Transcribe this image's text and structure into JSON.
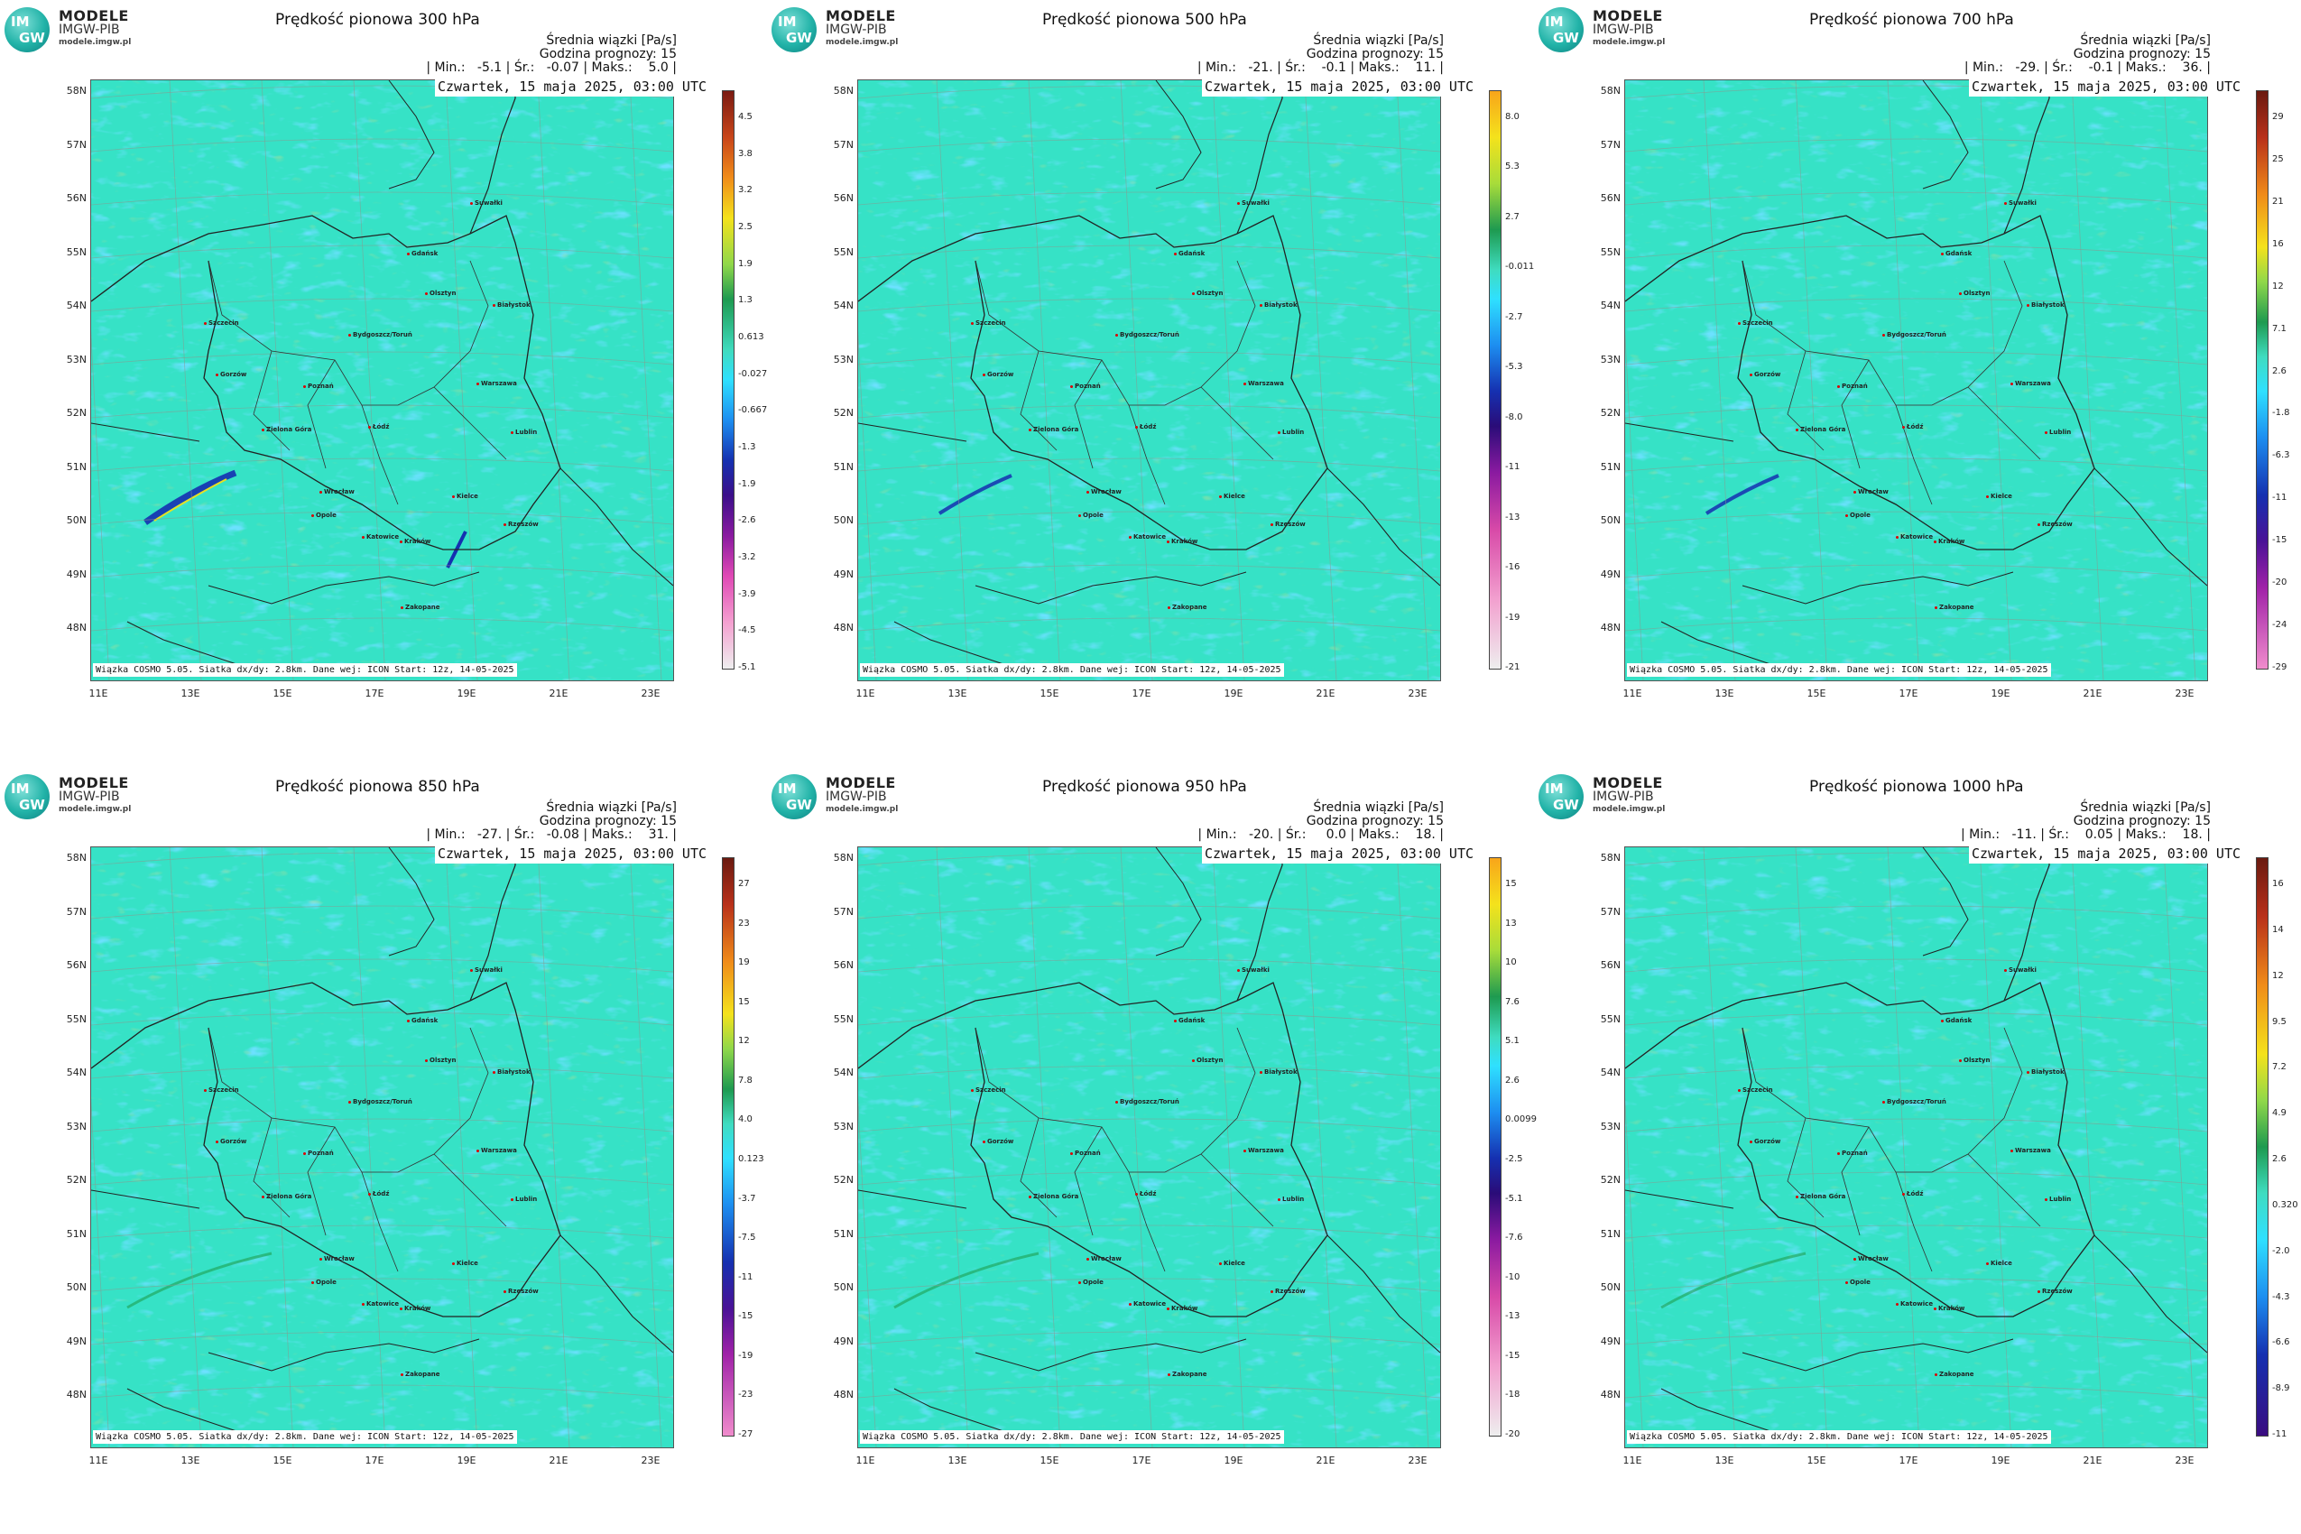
{
  "logo": {
    "title": "MODELE",
    "subtitle": "IMGW-PIB",
    "url": "modele.imgw.pl",
    "mark_top": "IM",
    "mark_bottom": "GW"
  },
  "common": {
    "date": "Czwartek, 15 maja 2025, 03:00 UTC",
    "stat_line1": "Średnia wiązki [Pa/s]",
    "stat_line2": "Godzina prognozy: 15",
    "footer": "Wiązka COSMO 5.05. Siatka dx/dy: 2.8km. Dane wej: ICON Start: 12z, 14-05-2025"
  },
  "lat_labels": [
    "58N",
    "57N",
    "56N",
    "55N",
    "54N",
    "53N",
    "52N",
    "51N",
    "50N",
    "49N",
    "48N"
  ],
  "lon_labels": [
    "11E",
    "13E",
    "15E",
    "17E",
    "19E",
    "21E",
    "23E"
  ],
  "cities": [
    "Gdańsk",
    "Suwałki",
    "Olsztyn",
    "Białystok",
    "Szczecin",
    "Bydgoszcz/Toruń",
    "Gorzów",
    "Poznań",
    "Warszawa",
    "Zielona Góra",
    "Łódź",
    "Lublin",
    "Wrocław",
    "Kielce",
    "Opole",
    "Katowice",
    "Kraków",
    "Rzeszów",
    "Zakopane"
  ],
  "panels": [
    {
      "title": "Prędkość pionowa 300 hPa",
      "stats": "| Min.:   -5.1 | Śr.:   -0.07 | Maks.:    5.0 |",
      "colorbar": {
        "type": "div300",
        "ticks": [
          "4.5",
          "3.8",
          "3.2",
          "2.5",
          "1.9",
          "1.3",
          "0.613",
          "-0.027",
          "-0.667",
          "-1.3",
          "-1.9",
          "-2.6",
          "-3.2",
          "-3.9",
          "-4.5",
          "-5.1"
        ]
      }
    },
    {
      "title": "Prędkość pionowa 500 hPa",
      "stats": "| Min.:   -21. | Śr.:    -0.1 | Maks.:    11. |",
      "colorbar": {
        "type": "div500",
        "ticks": [
          "8.0",
          "5.3",
          "2.7",
          "-0.011",
          "-2.7",
          "-5.3",
          "-8.0",
          "-11",
          "-13",
          "-16",
          "-19",
          "-21"
        ]
      }
    },
    {
      "title": "Prędkość pionowa 700 hPa",
      "stats": "| Min.:   -29. | Śr.:    -0.1 | Maks.:    36. |",
      "colorbar": {
        "type": "div700",
        "ticks": [
          "29",
          "25",
          "21",
          "16",
          "12",
          "7.1",
          "2.6",
          "-1.8",
          "-6.3",
          "-11",
          "-15",
          "-20",
          "-24",
          "-29"
        ]
      }
    },
    {
      "title": "Prędkość pionowa 850 hPa",
      "stats": "| Min.:   -27. | Śr.:   -0.08 | Maks.:    31. |",
      "colorbar": {
        "type": "div700",
        "ticks": [
          "27",
          "23",
          "19",
          "15",
          "12",
          "7.8",
          "4.0",
          "0.123",
          "-3.7",
          "-7.5",
          "-11",
          "-15",
          "-19",
          "-23",
          "-27"
        ]
      }
    },
    {
      "title": "Prędkość pionowa 950 hPa",
      "stats": "| Min.:   -20. | Śr.:     0.0 | Maks.:    18. |",
      "colorbar": {
        "type": "div500",
        "ticks": [
          "15",
          "13",
          "10",
          "7.6",
          "5.1",
          "2.6",
          "0.0099",
          "-2.5",
          "-5.1",
          "-7.6",
          "-10",
          "-13",
          "-15",
          "-18",
          "-20"
        ]
      }
    },
    {
      "title": "Prędkość pionowa 1000 hPa",
      "stats": "| Min.:   -11. | Śr.:    0.05 | Maks.:    18. |",
      "colorbar": {
        "type": "div1000",
        "ticks": [
          "16",
          "14",
          "12",
          "9.5",
          "7.2",
          "4.9",
          "2.6",
          "0.320",
          "-2.0",
          "-4.3",
          "-6.6",
          "-8.9",
          "-11"
        ]
      }
    }
  ]
}
